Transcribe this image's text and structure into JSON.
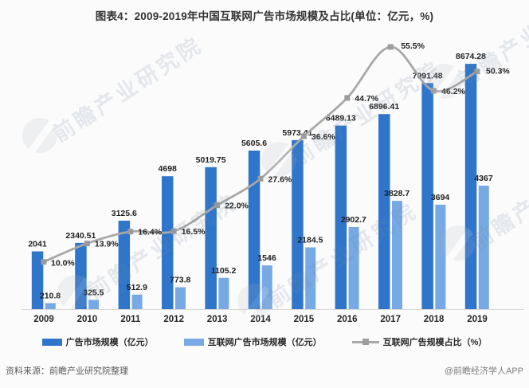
{
  "title": "图表4：2009-2019年中国互联网广告市场规模及占比(单位：亿元，%)",
  "watermark_text": "前瞻产业研究院",
  "footer": {
    "source": "资料来源：前瞻产业研究院整理",
    "credit": "@前瞻经济学人APP"
  },
  "colors": {
    "bar_dark": "#2F76CB",
    "bar_light": "#77A9E5",
    "line": "#A8A8A8",
    "marker": "#9C9C9C",
    "label": "#1F1F1F",
    "tick": "#262626",
    "axis": "#D9D9D9",
    "title": "#333333"
  },
  "chart_data": {
    "type": "bar+line combo",
    "title": "图表4：2009-2019年中国互联网广告市场规模及占比(单位：亿元，%)",
    "categories": [
      "2009",
      "2010",
      "2011",
      "2012",
      "2013",
      "2014",
      "2015",
      "2016",
      "2017",
      "2018",
      "2019"
    ],
    "series": [
      {
        "name": "广告市场规模（亿元）",
        "type": "bar",
        "color": "#2F76CB",
        "values": [
          2041,
          2340.51,
          3125.6,
          4698,
          5019.75,
          5605.6,
          5973.41,
          6489.13,
          6896.41,
          7991.48,
          8674.28
        ]
      },
      {
        "name": "互联网广告市场规模（亿元）",
        "type": "bar",
        "color": "#77A9E5",
        "values": [
          210.8,
          325.5,
          512.9,
          773.8,
          1105.2,
          1546,
          2184.5,
          2902.7,
          3828.7,
          3694,
          4367
        ]
      },
      {
        "name": "互联网广告规模占比（%）",
        "type": "line",
        "color": "#A8A8A8",
        "values": [
          10.0,
          13.9,
          16.4,
          16.5,
          22.0,
          27.6,
          36.6,
          44.7,
          55.5,
          46.2,
          50.3
        ],
        "point_labels": [
          "10.0%",
          "13.9%",
          "16.4%",
          "16.5%",
          "22.0%",
          "27.6%",
          "36.6%",
          "44.7%",
          "55.5%",
          "46.2%",
          "50.3%"
        ]
      }
    ],
    "axes": {
      "bar_axis_range": [
        0,
        9400
      ],
      "pct_axis_range": [
        0,
        60
      ],
      "gridlines": false,
      "y_axis_labels_visible": false
    },
    "legend_position": "bottom",
    "data_labels_visible": true
  }
}
